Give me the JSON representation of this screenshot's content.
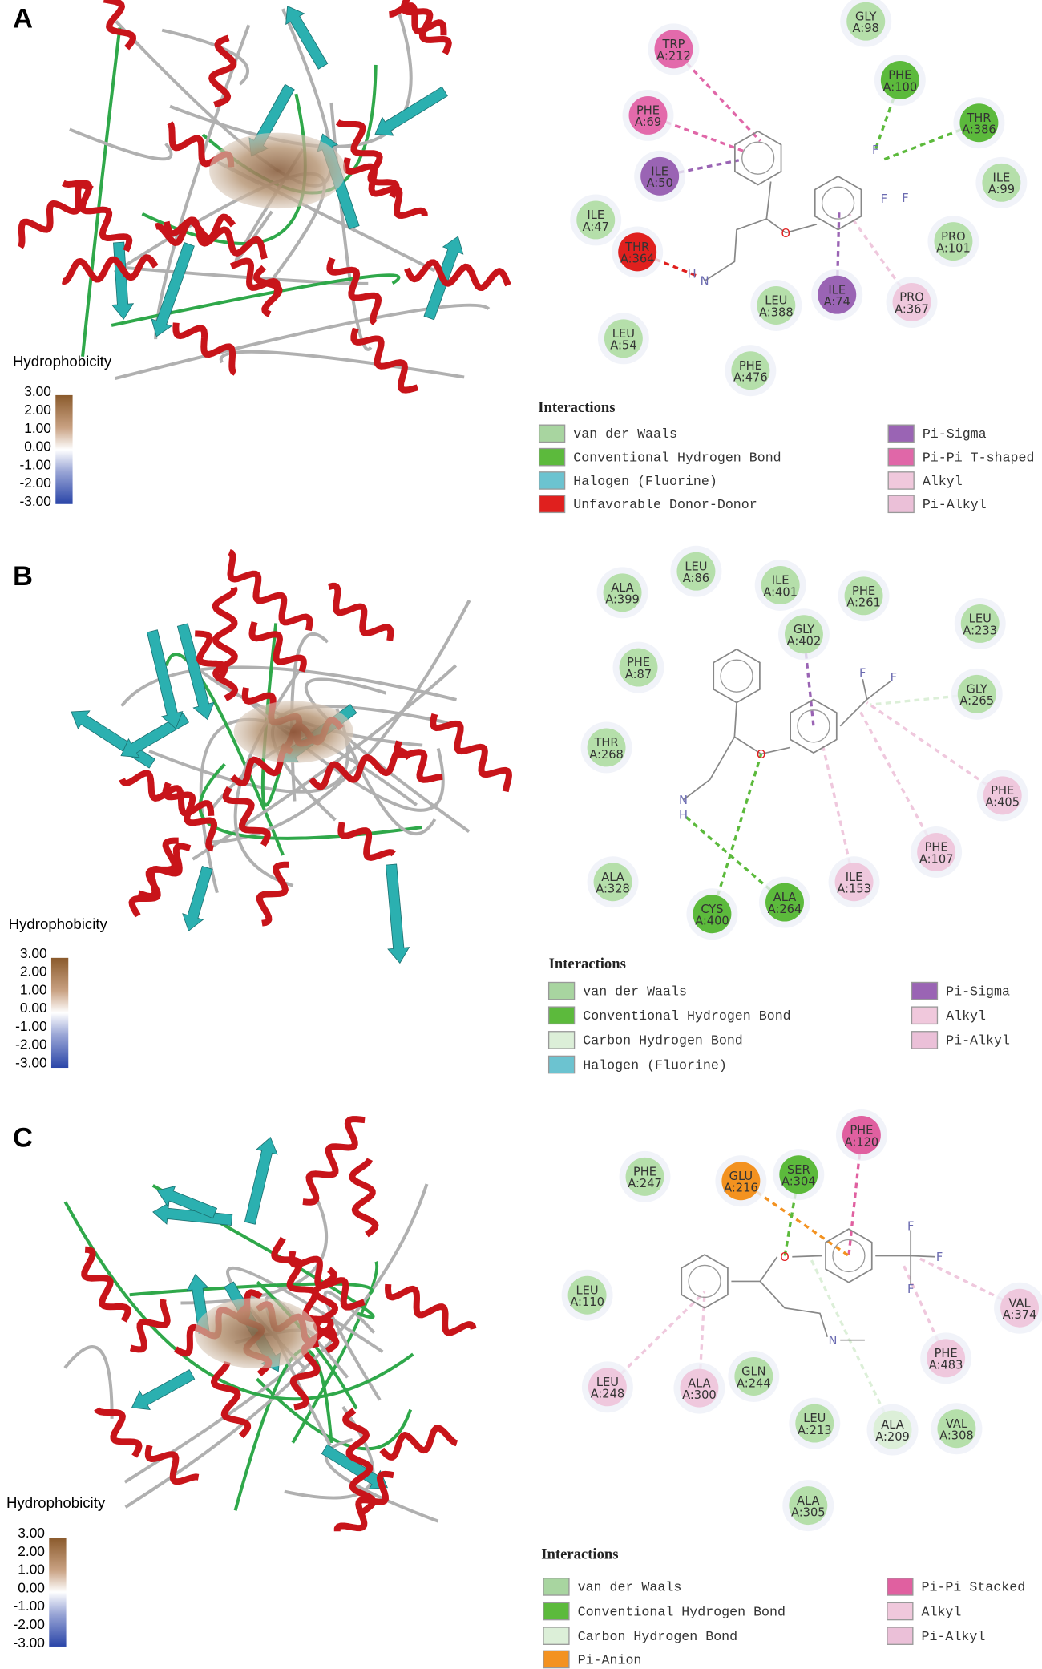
{
  "panels": [
    {
      "label": "A",
      "hydrophobicity": {
        "title": "Hydrophobicity",
        "ticks": [
          "3.00",
          "2.00",
          "1.00",
          "0.00",
          "-1.00",
          "-2.00",
          "-3.00"
        ]
      },
      "residues": [
        {
          "name": "GLY",
          "id": "A:98",
          "color": "#b5dfaa"
        },
        {
          "name": "TRP",
          "id": "A:212",
          "color": "#e36aab"
        },
        {
          "name": "PHE",
          "id": "A:100",
          "color": "#5cba3c"
        },
        {
          "name": "PHE",
          "id": "A:69",
          "color": "#e36aab"
        },
        {
          "name": "THR",
          "id": "A:386",
          "color": "#5cba3c"
        },
        {
          "name": "ILE",
          "id": "A:50",
          "color": "#9a64b4"
        },
        {
          "name": "ILE",
          "id": "A:99",
          "color": "#b5dfaa"
        },
        {
          "name": "ILE",
          "id": "A:47",
          "color": "#b5dfaa"
        },
        {
          "name": "PRO",
          "id": "A:101",
          "color": "#b5dfaa"
        },
        {
          "name": "THR",
          "id": "A:364",
          "color": "#e0201e"
        },
        {
          "name": "LEU",
          "id": "A:388",
          "color": "#b5dfaa"
        },
        {
          "name": "ILE",
          "id": "A:74",
          "color": "#9a64b4"
        },
        {
          "name": "PRO",
          "id": "A:367",
          "color": "#efc8dd"
        },
        {
          "name": "LEU",
          "id": "A:54",
          "color": "#b5dfaa"
        },
        {
          "name": "PHE",
          "id": "A:476",
          "color": "#b5dfaa"
        }
      ],
      "ligand_atoms": [
        "O",
        "N",
        "H",
        "F",
        "F",
        "F"
      ],
      "legend_title": "Interactions",
      "legend": [
        {
          "label": "van der Waals",
          "color": "#a8d5a0"
        },
        {
          "label": "Conventional Hydrogen Bond",
          "color": "#5cba3c"
        },
        {
          "label": "Halogen (Fluorine)",
          "color": "#6cc3d0"
        },
        {
          "label": "Unfavorable Donor-Donor",
          "color": "#e0201e"
        },
        {
          "label": "Pi-Sigma",
          "color": "#9a64b4"
        },
        {
          "label": "Pi-Pi T-shaped",
          "color": "#e067a8"
        },
        {
          "label": "Alkyl",
          "color": "#f0c8dc"
        },
        {
          "label": "Pi-Alkyl",
          "color": "#ebc0d8"
        }
      ]
    },
    {
      "label": "B",
      "hydrophobicity": {
        "title": "Hydrophobicity",
        "ticks": [
          "3.00",
          "2.00",
          "1.00",
          "0.00",
          "-1.00",
          "-2.00",
          "-3.00"
        ]
      },
      "residues": [
        {
          "name": "LEU",
          "id": "A:86",
          "color": "#b5dfaa"
        },
        {
          "name": "ALA",
          "id": "A:399",
          "color": "#b5dfaa"
        },
        {
          "name": "ILE",
          "id": "A:401",
          "color": "#b5dfaa"
        },
        {
          "name": "PHE",
          "id": "A:261",
          "color": "#b5dfaa"
        },
        {
          "name": "LEU",
          "id": "A:233",
          "color": "#b5dfaa"
        },
        {
          "name": "GLY",
          "id": "A:402",
          "color": "#b5dfaa"
        },
        {
          "name": "PHE",
          "id": "A:87",
          "color": "#b5dfaa"
        },
        {
          "name": "GLY",
          "id": "A:265",
          "color": "#b5dfaa"
        },
        {
          "name": "THR",
          "id": "A:268",
          "color": "#b5dfaa"
        },
        {
          "name": "PHE",
          "id": "A:405",
          "color": "#efc8dd"
        },
        {
          "name": "PHE",
          "id": "A:107",
          "color": "#efc8dd"
        },
        {
          "name": "ALA",
          "id": "A:328",
          "color": "#b5dfaa"
        },
        {
          "name": "ILE",
          "id": "A:153",
          "color": "#efc8dd"
        },
        {
          "name": "CYS",
          "id": "A:400",
          "color": "#5cba3c"
        },
        {
          "name": "ALA",
          "id": "A:264",
          "color": "#5cba3c"
        }
      ],
      "ligand_atoms": [
        "O",
        "N",
        "H",
        "F",
        "F"
      ],
      "legend_title": "Interactions",
      "legend": [
        {
          "label": "van der Waals",
          "color": "#a8d5a0"
        },
        {
          "label": "Conventional Hydrogen Bond",
          "color": "#5cba3c"
        },
        {
          "label": "Carbon Hydrogen Bond",
          "color": "#dcefd8"
        },
        {
          "label": "Halogen (Fluorine)",
          "color": "#6cc3d0"
        },
        {
          "label": "Pi-Sigma",
          "color": "#9a64b4"
        },
        {
          "label": "Alkyl",
          "color": "#f0c8dc"
        },
        {
          "label": "Pi-Alkyl",
          "color": "#ebc0d8"
        }
      ]
    },
    {
      "label": "C",
      "hydrophobicity": {
        "title": "Hydrophobicity",
        "ticks": [
          "3.00",
          "2.00",
          "1.00",
          "0.00",
          "-1.00",
          "-2.00",
          "-3.00"
        ]
      },
      "residues": [
        {
          "name": "PHE",
          "id": "A:120",
          "color": "#e060a0"
        },
        {
          "name": "PHE",
          "id": "A:247",
          "color": "#b5dfaa"
        },
        {
          "name": "GLU",
          "id": "A:216",
          "color": "#f39220"
        },
        {
          "name": "SER",
          "id": "A:304",
          "color": "#5cba3c"
        },
        {
          "name": "LEU",
          "id": "A:110",
          "color": "#b5dfaa"
        },
        {
          "name": "VAL",
          "id": "A:374",
          "color": "#efc8dd"
        },
        {
          "name": "PHE",
          "id": "A:483",
          "color": "#efc8dd"
        },
        {
          "name": "LEU",
          "id": "A:248",
          "color": "#efc8dd"
        },
        {
          "name": "ALA",
          "id": "A:300",
          "color": "#efc8dd"
        },
        {
          "name": "GLN",
          "id": "A:244",
          "color": "#b5dfaa"
        },
        {
          "name": "LEU",
          "id": "A:213",
          "color": "#b5dfaa"
        },
        {
          "name": "ALA",
          "id": "A:209",
          "color": "#dcefd8"
        },
        {
          "name": "VAL",
          "id": "A:308",
          "color": "#b5dfaa"
        },
        {
          "name": "ALA",
          "id": "A:305",
          "color": "#b5dfaa"
        }
      ],
      "ligand_atoms": [
        "O",
        "N",
        "F",
        "F",
        "F"
      ],
      "legend_title": "Interactions",
      "legend": [
        {
          "label": "van der Waals",
          "color": "#a8d5a0"
        },
        {
          "label": "Conventional Hydrogen Bond",
          "color": "#5cba3c"
        },
        {
          "label": "Carbon Hydrogen Bond",
          "color": "#dcefd8"
        },
        {
          "label": "Pi-Anion",
          "color": "#f39220"
        },
        {
          "label": "Pi-Pi Stacked",
          "color": "#e060a0"
        },
        {
          "label": "Alkyl",
          "color": "#f0c8dc"
        },
        {
          "label": "Pi-Alkyl",
          "color": "#ebc0d8"
        }
      ]
    }
  ]
}
